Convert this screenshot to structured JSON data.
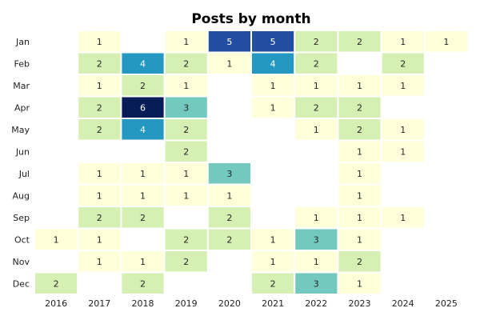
{
  "chart_data": {
    "type": "heatmap",
    "title": "Posts by month",
    "x_categories": [
      "2016",
      "2017",
      "2018",
      "2019",
      "2020",
      "2021",
      "2022",
      "2023",
      "2024",
      "2025"
    ],
    "y_categories": [
      "Jan",
      "Feb",
      "Mar",
      "Apr",
      "May",
      "Jun",
      "Jul",
      "Aug",
      "Sep",
      "Oct",
      "Nov",
      "Dec"
    ],
    "values": [
      [
        null,
        1,
        null,
        1,
        5,
        5,
        2,
        2,
        1,
        1
      ],
      [
        null,
        2,
        4,
        2,
        1,
        4,
        2,
        null,
        2,
        null
      ],
      [
        null,
        1,
        2,
        1,
        null,
        1,
        1,
        1,
        1,
        null
      ],
      [
        null,
        2,
        6,
        3,
        null,
        1,
        2,
        2,
        null,
        null
      ],
      [
        null,
        2,
        4,
        2,
        null,
        null,
        1,
        2,
        1,
        null
      ],
      [
        null,
        null,
        null,
        2,
        null,
        null,
        null,
        1,
        1,
        null
      ],
      [
        null,
        1,
        1,
        1,
        3,
        null,
        null,
        1,
        null,
        null
      ],
      [
        null,
        1,
        1,
        1,
        1,
        null,
        null,
        1,
        null,
        null
      ],
      [
        null,
        2,
        2,
        null,
        2,
        null,
        1,
        1,
        1,
        null
      ],
      [
        1,
        1,
        null,
        2,
        2,
        1,
        3,
        1,
        null,
        null
      ],
      [
        null,
        1,
        1,
        2,
        null,
        1,
        1,
        2,
        null,
        null
      ],
      [
        2,
        null,
        2,
        null,
        null,
        2,
        3,
        1,
        null,
        null
      ]
    ],
    "value_range": [
      1,
      6
    ],
    "colormap": "YlGnBu",
    "color_stops": {
      "1": "#ffffd9",
      "2": "#d6efb3",
      "3": "#73c9bd",
      "4": "#2498c1",
      "5": "#234da0",
      "6": "#081d58"
    },
    "grid": false,
    "legend": "none"
  }
}
